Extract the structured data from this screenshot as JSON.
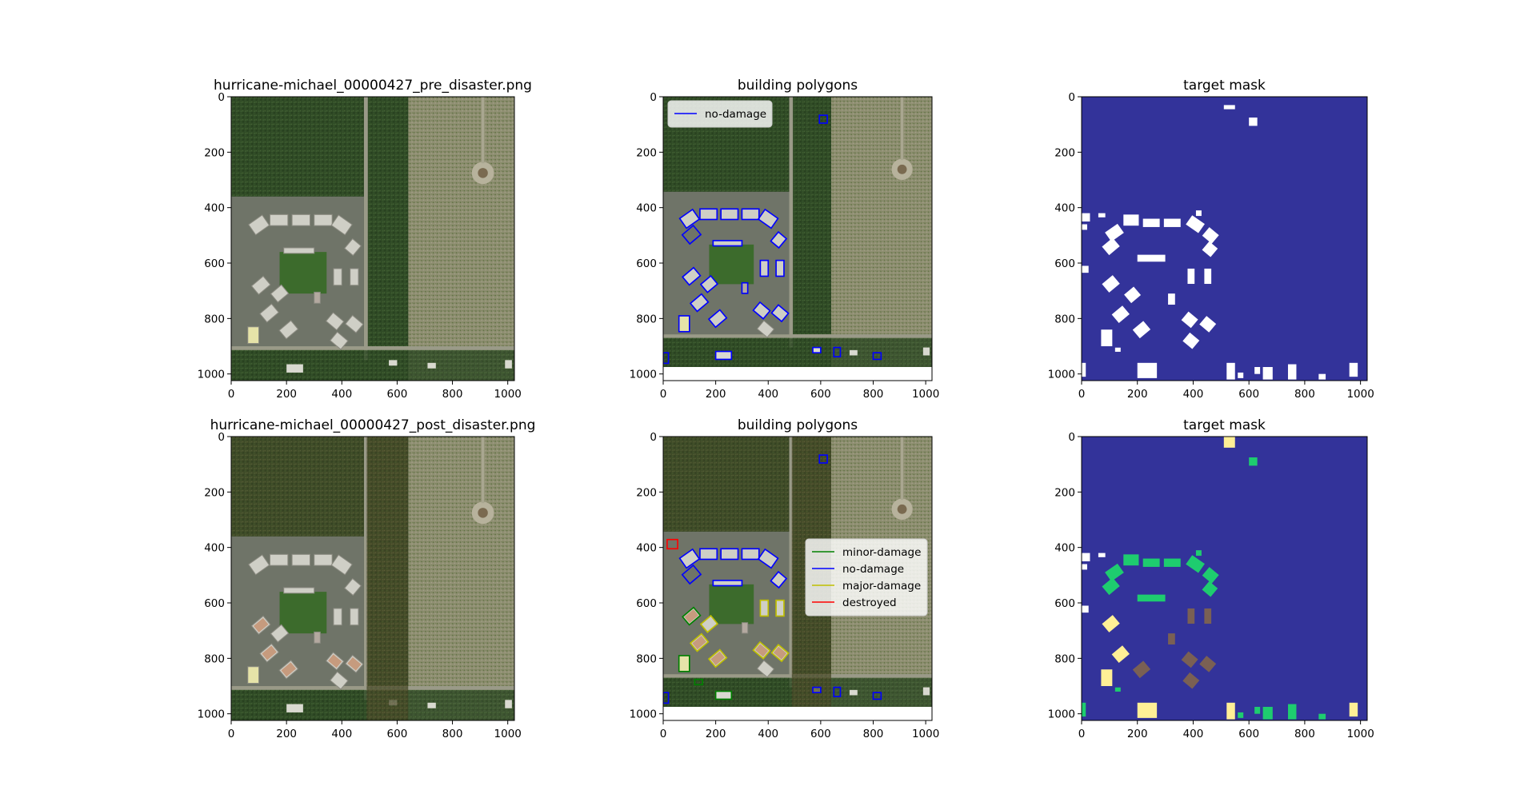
{
  "figure": {
    "titles": {
      "pre_image": "hurricane-michael_00000427_pre_disaster.png",
      "pre_polygons": "building polygons",
      "pre_mask": "target mask",
      "post_image": "hurricane-michael_00000427_post_disaster.png",
      "post_polygons": "building polygons",
      "post_mask": "target mask"
    }
  },
  "chart_data": [
    {
      "type": "image",
      "panel": "pre_image",
      "title": "hurricane-michael_00000427_pre_disaster.png",
      "xlim": [
        0,
        1024
      ],
      "ylim": [
        1024,
        0
      ],
      "xticks": [
        0,
        200,
        400,
        600,
        800,
        1000
      ],
      "yticks": [
        0,
        200,
        400,
        600,
        800,
        1000
      ]
    },
    {
      "type": "image",
      "panel": "pre_polygons",
      "title": "building polygons",
      "xlim": [
        0,
        1024
      ],
      "ylim": [
        1024,
        0
      ],
      "xticks": [
        0,
        200,
        400,
        600,
        800,
        1000
      ],
      "yticks": [
        0,
        200,
        400,
        600,
        800,
        1000
      ],
      "legend": {
        "position": "upper-left",
        "entries": [
          {
            "label": "no-damage",
            "color": "#0000ff"
          }
        ]
      }
    },
    {
      "type": "heatmap",
      "panel": "pre_mask",
      "title": "target mask",
      "xlim": [
        0,
        1024
      ],
      "ylim": [
        1024,
        0
      ],
      "xticks": [
        0,
        200,
        400,
        600,
        800,
        1000
      ],
      "yticks": [
        0,
        200,
        400,
        600,
        800,
        1000
      ],
      "colors": {
        "background": "#33339a",
        "no-damage": "#ffffff"
      }
    },
    {
      "type": "image",
      "panel": "post_image",
      "title": "hurricane-michael_00000427_post_disaster.png",
      "xlim": [
        0,
        1024
      ],
      "ylim": [
        1024,
        0
      ],
      "xticks": [
        0,
        200,
        400,
        600,
        800,
        1000
      ],
      "yticks": [
        0,
        200,
        400,
        600,
        800,
        1000
      ]
    },
    {
      "type": "image",
      "panel": "post_polygons",
      "title": "building polygons",
      "xlim": [
        0,
        1024
      ],
      "ylim": [
        1024,
        0
      ],
      "xticks": [
        0,
        200,
        400,
        600,
        800,
        1000
      ],
      "yticks": [
        0,
        200,
        400,
        600,
        800,
        1000
      ],
      "legend": {
        "position": "center-right",
        "entries": [
          {
            "label": "minor-damage",
            "color": "#008000"
          },
          {
            "label": "no-damage",
            "color": "#0000ff"
          },
          {
            "label": "major-damage",
            "color": "#bfbf00"
          },
          {
            "label": "destroyed",
            "color": "#ff0000"
          }
        ]
      }
    },
    {
      "type": "heatmap",
      "panel": "post_mask",
      "title": "target mask",
      "xlim": [
        0,
        1024
      ],
      "ylim": [
        1024,
        0
      ],
      "xticks": [
        0,
        200,
        400,
        600,
        800,
        1000
      ],
      "yticks": [
        0,
        200,
        400,
        600,
        800,
        1000
      ],
      "colors": {
        "background": "#33339a",
        "no-damage": "#ffffff",
        "minor-damage": "#1ecc6f",
        "major-damage": "#ffef96",
        "destroyed": "#7a6054"
      }
    }
  ]
}
